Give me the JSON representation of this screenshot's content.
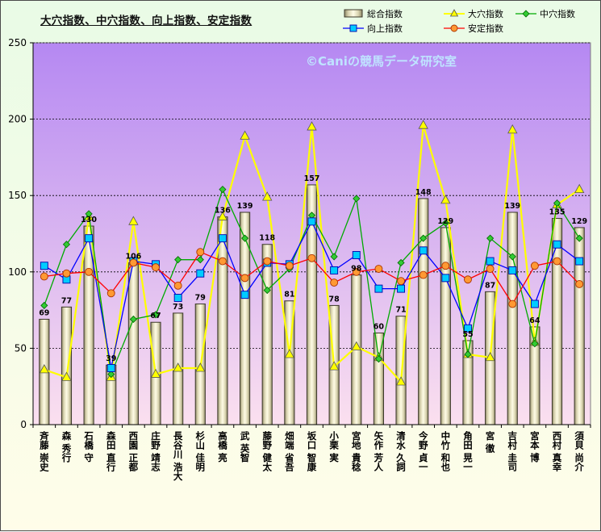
{
  "chart_data": {
    "type": "bar",
    "title": "大穴指数、中穴指数、向上指数、安定指数",
    "watermark": "©Caniの競馬データ研究室",
    "ylim": [
      0,
      250
    ],
    "yticks": [
      "0",
      "50",
      "100",
      "150",
      "200",
      "250"
    ],
    "grid": true,
    "legend_position": "top-right",
    "categories": [
      "斉藤 崇史",
      "森 秀行",
      "石橋 守",
      "森田 直行",
      "西園 正都",
      "庄野 靖志",
      "長谷川 浩大",
      "杉山 佳明",
      "高橋 亮",
      "武 英智",
      "藤野 健太",
      "畑端 省吾",
      "坂口 智康",
      "小栗 実",
      "宮地 貴稔",
      "矢作 芳人",
      "清水 久詞",
      "今野 貞一",
      "中竹 和也",
      "角田 晃一",
      "宮 徹",
      "吉村 圭司",
      "宮本 博",
      "西村 真幸",
      "須貝 尚介"
    ],
    "series": [
      {
        "name": "総合指数",
        "type": "bar",
        "color": "#e8e3bf",
        "values": [
          69,
          77,
          130,
          39,
          106,
          67,
          73,
          79,
          136,
          139,
          118,
          81,
          157,
          78,
          98,
          60,
          71,
          148,
          129,
          55,
          87,
          139,
          64,
          135,
          129
        ]
      },
      {
        "name": "大穴指数",
        "type": "line",
        "color": "#ffff00",
        "marker": "triangle",
        "values": [
          36,
          31,
          136,
          31,
          133,
          33,
          37,
          37,
          136,
          189,
          149,
          46,
          195,
          38,
          51,
          44,
          28,
          196,
          147,
          46,
          44,
          193,
          54,
          144,
          154
        ]
      },
      {
        "name": "中穴指数",
        "type": "line",
        "color": "#00aa00",
        "marker": "diamond",
        "values": [
          78,
          118,
          138,
          33,
          69,
          72,
          108,
          108,
          154,
          122,
          88,
          102,
          137,
          110,
          148,
          43,
          106,
          122,
          132,
          46,
          122,
          110,
          53,
          145,
          122
        ]
      },
      {
        "name": "向上指数",
        "type": "line",
        "color": "#0000ff",
        "marker": "square",
        "values": [
          104,
          95,
          122,
          37,
          107,
          105,
          83,
          99,
          122,
          85,
          106,
          105,
          133,
          101,
          111,
          89,
          89,
          114,
          96,
          63,
          107,
          101,
          79,
          118,
          107
        ]
      },
      {
        "name": "安定指数",
        "type": "line",
        "color": "#ff0000",
        "marker": "circle",
        "values": [
          97,
          99,
          100,
          86,
          106,
          103,
          91,
          113,
          107,
          96,
          107,
          104,
          109,
          93,
          100,
          102,
          94,
          98,
          104,
          95,
          102,
          79,
          104,
          107,
          92
        ]
      }
    ]
  }
}
